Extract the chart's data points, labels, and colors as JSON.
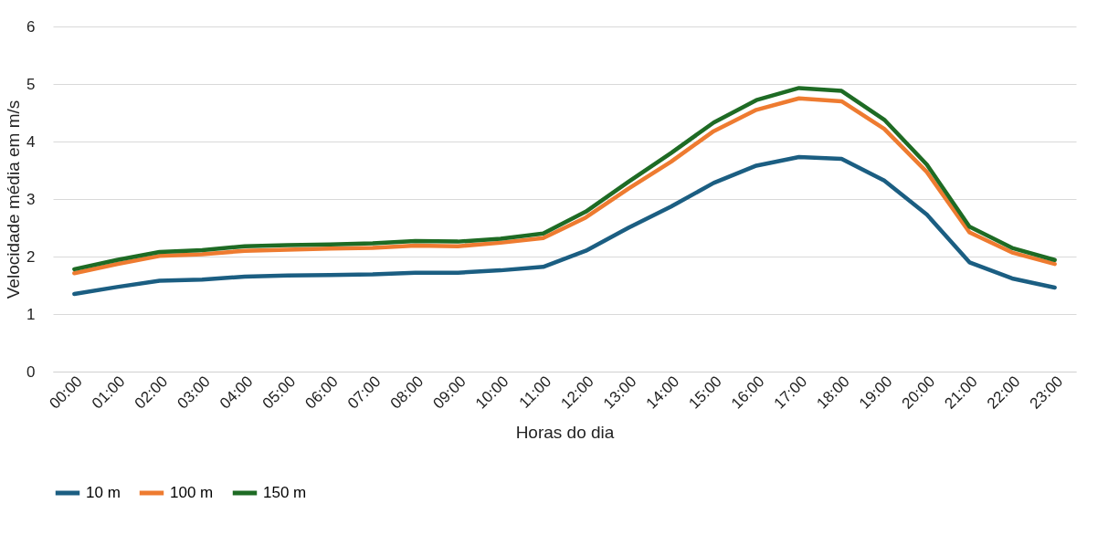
{
  "chart_data": {
    "type": "line",
    "xlabel": "Horas do dia",
    "ylabel": "Velocidade média em m/s",
    "categories": [
      "00:00",
      "01:00",
      "02:00",
      "03:00",
      "04:00",
      "05:00",
      "06:00",
      "07:00",
      "08:00",
      "09:00",
      "10:00",
      "11:00",
      "12:00",
      "13:00",
      "14:00",
      "15:00",
      "16:00",
      "17:00",
      "18:00",
      "19:00",
      "20:00",
      "21:00",
      "22:00",
      "23:00"
    ],
    "series": [
      {
        "name": "10 m",
        "color": "#1b5e82",
        "values": [
          1.35,
          1.47,
          1.58,
          1.6,
          1.65,
          1.67,
          1.68,
          1.69,
          1.72,
          1.72,
          1.76,
          1.82,
          2.1,
          2.5,
          2.87,
          3.28,
          3.58,
          3.73,
          3.7,
          3.32,
          2.73,
          1.9,
          1.62,
          1.46
        ]
      },
      {
        "name": "100 m",
        "color": "#ee7b30",
        "values": [
          1.71,
          1.87,
          2.01,
          2.04,
          2.1,
          2.12,
          2.14,
          2.15,
          2.19,
          2.18,
          2.24,
          2.32,
          2.68,
          3.18,
          3.65,
          4.18,
          4.55,
          4.75,
          4.7,
          4.22,
          3.47,
          2.42,
          2.07,
          1.87
        ]
      },
      {
        "name": "150 m",
        "color": "#1e6b24",
        "values": [
          1.78,
          1.94,
          2.08,
          2.11,
          2.18,
          2.2,
          2.21,
          2.23,
          2.27,
          2.26,
          2.31,
          2.4,
          2.78,
          3.3,
          3.8,
          4.33,
          4.72,
          4.93,
          4.88,
          4.38,
          3.6,
          2.52,
          2.15,
          1.94
        ]
      }
    ],
    "ylim": [
      0,
      6
    ],
    "yticks": [
      0,
      1,
      2,
      3,
      4,
      5,
      6
    ],
    "grid": "y",
    "legend": "bottom",
    "marker": "none",
    "line_style": "solid"
  }
}
